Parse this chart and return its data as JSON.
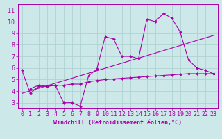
{
  "background_color": "#cde8e8",
  "grid_color": "#aacece",
  "line_color": "#aa00aa",
  "xlabel": "Windchill (Refroidissement éolien,°C)",
  "xlim": [
    -0.5,
    23.5
  ],
  "ylim": [
    2.5,
    11.5
  ],
  "yticks": [
    3,
    4,
    5,
    6,
    7,
    8,
    9,
    10,
    11
  ],
  "xticks": [
    0,
    1,
    2,
    3,
    4,
    5,
    6,
    7,
    8,
    9,
    10,
    11,
    12,
    13,
    14,
    15,
    16,
    17,
    18,
    19,
    20,
    21,
    22,
    23
  ],
  "line1_x": [
    0,
    1,
    2,
    3,
    4,
    5,
    6,
    7,
    8,
    9,
    10,
    11,
    12,
    13,
    14,
    15,
    16,
    17,
    18,
    19,
    20,
    21,
    22,
    23
  ],
  "line1_y": [
    5.8,
    3.8,
    4.4,
    4.4,
    4.5,
    3.0,
    3.0,
    2.7,
    5.3,
    5.9,
    8.7,
    8.5,
    7.0,
    7.0,
    6.8,
    10.2,
    10.0,
    10.7,
    10.3,
    9.1,
    6.7,
    6.0,
    5.8,
    5.5
  ],
  "line2_x": [
    1,
    2,
    3,
    4,
    5,
    6,
    7,
    8,
    9,
    10,
    11,
    12,
    13,
    14,
    15,
    16,
    17,
    18,
    19,
    20,
    21,
    22,
    23
  ],
  "line2_y": [
    4.2,
    4.5,
    4.4,
    4.5,
    4.5,
    4.6,
    4.6,
    4.8,
    4.9,
    5.0,
    5.05,
    5.1,
    5.15,
    5.2,
    5.25,
    5.3,
    5.35,
    5.4,
    5.45,
    5.5,
    5.5,
    5.5,
    5.5
  ],
  "line3_x": [
    0,
    23
  ],
  "line3_y": [
    3.8,
    8.8
  ],
  "marker_size": 2.0,
  "linewidth": 0.8,
  "xlabel_fontsize": 6,
  "tick_fontsize": 6
}
